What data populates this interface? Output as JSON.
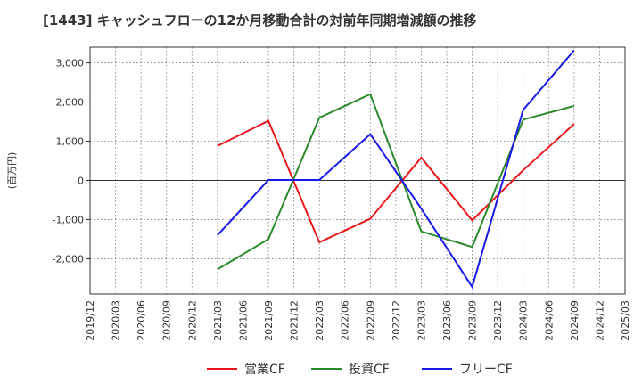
{
  "chart_data": {
    "type": "line",
    "title": "[1443]  キャッシュフローの12か月移動合計の対前年同期増減額の推移",
    "ylabel": "(百万円)",
    "xlabel": "",
    "ylim": [
      -2900,
      3400
    ],
    "yticks": [
      3000,
      2000,
      1000,
      0,
      -1000,
      -2000
    ],
    "ytick_labels": [
      "3,000",
      "2,000",
      "1,000",
      "0",
      "-1,000",
      "-2,000"
    ],
    "categories": [
      "2019/12",
      "2020/03",
      "2020/06",
      "2020/09",
      "2020/12",
      "2021/03",
      "2021/06",
      "2021/09",
      "2021/12",
      "2022/03",
      "2022/06",
      "2022/09",
      "2022/12",
      "2023/03",
      "2023/06",
      "2023/09",
      "2023/12",
      "2024/03",
      "2024/06",
      "2024/09",
      "2024/12",
      "2025/03"
    ],
    "grid": true,
    "legend_position": "bottom",
    "series": [
      {
        "name": "営業CF",
        "color": "#e8161b",
        "points": [
          [
            "2021/03",
            880
          ],
          [
            "2021/09",
            1520
          ],
          [
            "2022/03",
            -1580
          ],
          [
            "2022/09",
            -980
          ],
          [
            "2023/03",
            580
          ],
          [
            "2023/09",
            -1020
          ],
          [
            "2024/03",
            260
          ],
          [
            "2024/09",
            1440
          ]
        ]
      },
      {
        "name": "投資CF",
        "color": "#2b8a2b",
        "points": [
          [
            "2021/03",
            -2270
          ],
          [
            "2021/09",
            -1500
          ],
          [
            "2022/03",
            1600
          ],
          [
            "2022/09",
            2200
          ],
          [
            "2023/03",
            -1300
          ],
          [
            "2023/09",
            -1700
          ],
          [
            "2024/03",
            1550
          ],
          [
            "2024/09",
            1900
          ]
        ]
      },
      {
        "name": "フリーCF",
        "color": "#1919e6",
        "points": [
          [
            "2021/03",
            -1400
          ],
          [
            "2021/09",
            10
          ],
          [
            "2022/03",
            10
          ],
          [
            "2022/09",
            1180
          ],
          [
            "2023/03",
            -720
          ],
          [
            "2023/09",
            -2720
          ],
          [
            "2024/03",
            1800
          ],
          [
            "2024/09",
            3320
          ]
        ]
      }
    ]
  }
}
